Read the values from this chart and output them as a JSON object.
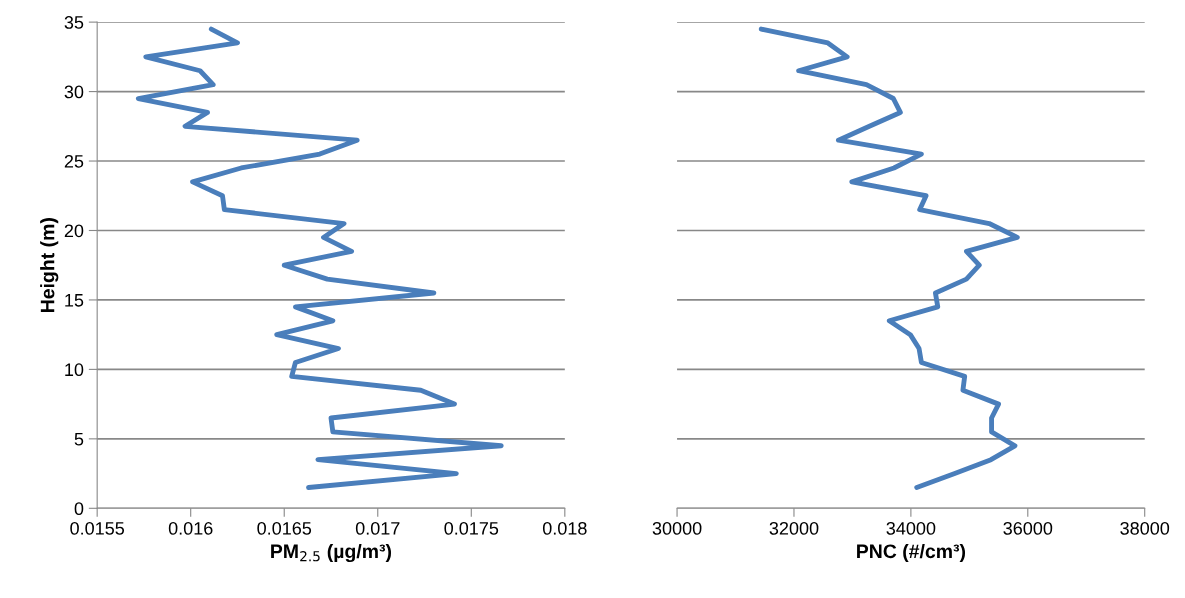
{
  "chart_data": [
    {
      "type": "line",
      "xlabel": "PM$_{2.5}$ (µg/m³)",
      "ylabel": "Height (m)",
      "grid": "y",
      "marker": "none",
      "line_style": "solid",
      "xlim": [
        0.0155,
        0.018
      ],
      "xticks": [
        0.0155,
        0.016,
        0.0165,
        0.017,
        0.0175,
        0.018
      ],
      "ylim": [
        0,
        35
      ],
      "yticks": [
        0,
        5,
        10,
        15,
        20,
        25,
        30,
        35
      ],
      "series": [
        {
          "color": "#4a7ebb",
          "x": [
            0.01611,
            0.01625,
            0.01576,
            0.01605,
            0.01612,
            0.01572,
            0.01609,
            0.01597,
            0.01689,
            0.01669,
            0.01627,
            0.01601,
            0.01617,
            0.01618,
            0.01682,
            0.01671,
            0.01686,
            0.0165,
            0.01673,
            0.0173,
            0.01656,
            0.01676,
            0.01646,
            0.01679,
            0.01656,
            0.01654,
            0.01723,
            0.01741,
            0.01675,
            0.01676,
            0.01766,
            0.01668,
            0.01742,
            0.01663
          ],
          "values": [
            34.5,
            33.5,
            32.5,
            31.5,
            30.5,
            29.5,
            28.5,
            27.5,
            26.5,
            25.5,
            24.5,
            23.5,
            22.5,
            21.5,
            20.5,
            19.5,
            18.5,
            17.5,
            16.5,
            15.5,
            14.5,
            13.5,
            12.5,
            11.5,
            10.5,
            9.5,
            8.5,
            7.5,
            6.5,
            5.5,
            4.5,
            3.5,
            2.5,
            1.5
          ]
        }
      ]
    },
    {
      "type": "line",
      "xlabel": "PNC (#/cm³)",
      "grid": "y",
      "marker": "none",
      "line_style": "solid",
      "tick_labels": "x",
      "xlim": [
        30000,
        38000
      ],
      "xticks": [
        30000,
        32000,
        34000,
        36000,
        38000
      ],
      "ylim": [
        0,
        35
      ],
      "series": [
        {
          "color": "#4a7ebb",
          "x": [
            31440,
            32580,
            32910,
            32080,
            33240,
            33700,
            33820,
            33290,
            32760,
            34180,
            33710,
            32990,
            34260,
            34150,
            35340,
            35820,
            34950,
            35170,
            34950,
            34420,
            34460,
            33630,
            33990,
            34140,
            34180,
            34920,
            34890,
            35500,
            35380,
            35380,
            35780,
            35370,
            34750,
            34100
          ],
          "values": [
            34.5,
            33.5,
            32.5,
            31.5,
            30.5,
            29.5,
            28.5,
            27.5,
            26.5,
            25.5,
            24.5,
            23.5,
            22.5,
            21.5,
            20.5,
            19.5,
            18.5,
            17.5,
            16.5,
            15.5,
            14.5,
            13.5,
            12.5,
            11.5,
            10.5,
            9.5,
            8.5,
            7.5,
            6.5,
            5.5,
            4.5,
            3.5,
            2.5,
            1.5
          ]
        }
      ]
    }
  ]
}
